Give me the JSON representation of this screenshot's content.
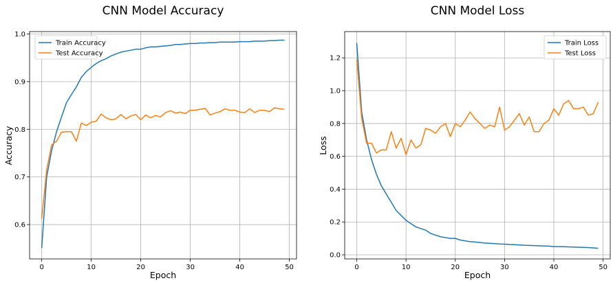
{
  "chart_data": [
    {
      "type": "line",
      "title": "CNN Model Accuracy",
      "xlabel": "Epoch",
      "ylabel": "Accuracy",
      "xlim": [
        -2.45,
        51.45
      ],
      "ylim": [
        0.528,
        1.005
      ],
      "xticks": [
        0,
        10,
        20,
        30,
        40,
        50
      ],
      "yticks": [
        0.6,
        0.7,
        0.8,
        0.9,
        1.0
      ],
      "ytick_decimals": 1,
      "grid": true,
      "legend": "top-left",
      "x": [
        0,
        1,
        2,
        3,
        4,
        5,
        6,
        7,
        8,
        9,
        10,
        11,
        12,
        13,
        14,
        15,
        16,
        17,
        18,
        19,
        20,
        21,
        22,
        23,
        24,
        25,
        26,
        27,
        28,
        29,
        30,
        31,
        32,
        33,
        34,
        35,
        36,
        37,
        38,
        39,
        40,
        41,
        42,
        43,
        44,
        45,
        46,
        47,
        48,
        49
      ],
      "series": [
        {
          "name": "Train Accuracy",
          "color": "#1f77b4",
          "values": [
            0.551,
            0.7,
            0.755,
            0.795,
            0.826,
            0.856,
            0.873,
            0.889,
            0.909,
            0.921,
            0.93,
            0.938,
            0.944,
            0.948,
            0.954,
            0.958,
            0.962,
            0.964,
            0.966,
            0.968,
            0.968,
            0.971,
            0.973,
            0.973,
            0.974,
            0.975,
            0.976,
            0.978,
            0.978,
            0.979,
            0.98,
            0.98,
            0.981,
            0.981,
            0.982,
            0.982,
            0.983,
            0.983,
            0.983,
            0.983,
            0.984,
            0.984,
            0.984,
            0.985,
            0.985,
            0.985,
            0.986,
            0.986,
            0.987,
            0.987
          ]
        },
        {
          "name": "Test Accuracy",
          "color": "#ff7f0e",
          "values": [
            0.612,
            0.715,
            0.767,
            0.775,
            0.794,
            0.795,
            0.795,
            0.775,
            0.813,
            0.808,
            0.815,
            0.817,
            0.832,
            0.824,
            0.82,
            0.822,
            0.831,
            0.822,
            0.828,
            0.831,
            0.82,
            0.83,
            0.824,
            0.829,
            0.826,
            0.835,
            0.839,
            0.834,
            0.836,
            0.833,
            0.84,
            0.84,
            0.842,
            0.844,
            0.83,
            0.834,
            0.837,
            0.843,
            0.84,
            0.84,
            0.836,
            0.835,
            0.843,
            0.835,
            0.84,
            0.84,
            0.837,
            0.845,
            0.843,
            0.842
          ]
        }
      ]
    },
    {
      "type": "line",
      "title": "CNN Model Loss",
      "xlabel": "Epoch",
      "ylabel": "Loss",
      "xlim": [
        -2.45,
        51.45
      ],
      "ylim": [
        -0.025,
        1.36
      ],
      "xticks": [
        0,
        10,
        20,
        30,
        40,
        50
      ],
      "yticks": [
        0.0,
        0.2,
        0.4,
        0.6,
        0.8,
        1.0,
        1.2
      ],
      "ytick_decimals": 1,
      "grid": true,
      "legend": "top-right",
      "x": [
        0,
        1,
        2,
        3,
        4,
        5,
        6,
        7,
        8,
        9,
        10,
        11,
        12,
        13,
        14,
        15,
        16,
        17,
        18,
        19,
        20,
        21,
        22,
        23,
        24,
        25,
        26,
        27,
        28,
        29,
        30,
        31,
        32,
        33,
        34,
        35,
        36,
        37,
        38,
        39,
        40,
        41,
        42,
        43,
        44,
        45,
        46,
        47,
        48,
        49
      ],
      "series": [
        {
          "name": "Train Loss",
          "color": "#1f77b4",
          "values": [
            1.29,
            0.87,
            0.7,
            0.58,
            0.49,
            0.42,
            0.37,
            0.32,
            0.27,
            0.24,
            0.21,
            0.19,
            0.17,
            0.16,
            0.15,
            0.13,
            0.12,
            0.11,
            0.105,
            0.1,
            0.1,
            0.09,
            0.085,
            0.08,
            0.078,
            0.075,
            0.072,
            0.07,
            0.068,
            0.066,
            0.065,
            0.063,
            0.062,
            0.06,
            0.058,
            0.057,
            0.056,
            0.055,
            0.054,
            0.053,
            0.05,
            0.05,
            0.049,
            0.048,
            0.047,
            0.046,
            0.045,
            0.044,
            0.042,
            0.04
          ]
        },
        {
          "name": "Test Loss",
          "color": "#ff7f0e",
          "values": [
            1.19,
            0.83,
            0.68,
            0.68,
            0.62,
            0.64,
            0.64,
            0.75,
            0.65,
            0.71,
            0.61,
            0.7,
            0.65,
            0.67,
            0.77,
            0.76,
            0.74,
            0.78,
            0.8,
            0.72,
            0.8,
            0.78,
            0.82,
            0.87,
            0.83,
            0.8,
            0.77,
            0.79,
            0.78,
            0.9,
            0.76,
            0.78,
            0.82,
            0.86,
            0.79,
            0.84,
            0.75,
            0.75,
            0.8,
            0.82,
            0.89,
            0.85,
            0.92,
            0.94,
            0.89,
            0.89,
            0.9,
            0.85,
            0.86,
            0.93
          ]
        }
      ]
    }
  ]
}
